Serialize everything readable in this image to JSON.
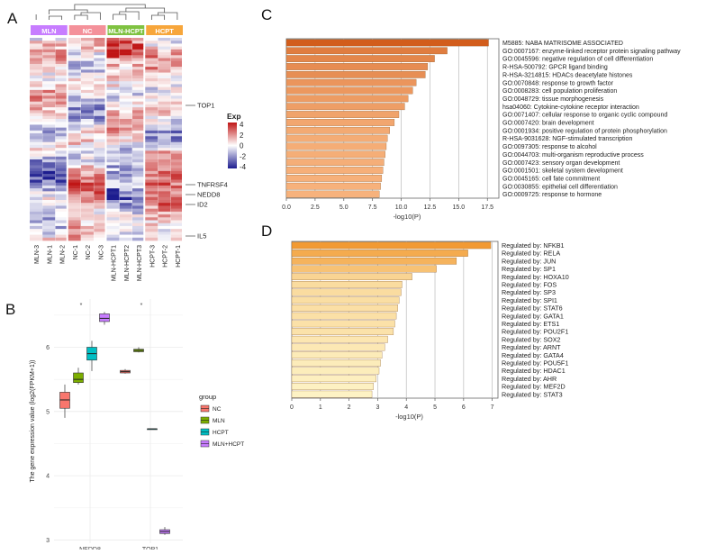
{
  "panel_labels": {
    "a": "A",
    "b": "B",
    "c": "C",
    "d": "D"
  },
  "chart_data": [
    {
      "panel": "A",
      "type": "heatmap",
      "groups": [
        {
          "name": "MLN",
          "color": "#c77dff"
        },
        {
          "name": "NC",
          "color": "#f4919a"
        },
        {
          "name": "MLN-HCPT",
          "color": "#7fc241"
        },
        {
          "name": "HCPT",
          "color": "#f7a63b"
        }
      ],
      "columns": [
        "MLN-3",
        "MLN-1",
        "MLN-2",
        "NC-1",
        "NC-2",
        "NC-3",
        "MLN-HCPT1",
        "MLN-HCPT2",
        "MLN-HCPT3",
        "HCPT-3",
        "HCPT-2",
        "HCPT-1"
      ],
      "gene_labels": [
        "TOP1",
        "TNFRSF4",
        "NEDD8",
        "ID2",
        "IL5"
      ],
      "legend": {
        "title": "Exp",
        "ticks": [
          "4",
          "2",
          "0",
          "-2",
          "-4"
        ],
        "range": [
          -4,
          4
        ],
        "low_color": "#1d1d8f",
        "mid_color": "#ffffff",
        "high_color": "#c01616"
      }
    },
    {
      "panel": "B",
      "type": "boxplot",
      "categories": [
        "NEDD8",
        "TOP1"
      ],
      "ylabel": "The gene expression value (log2(FPKM+1))",
      "ylim": [
        2.95,
        6.75
      ],
      "yticks": [
        3,
        4,
        5,
        6
      ],
      "significance": [
        "*",
        "*"
      ],
      "legend_title": "group",
      "series": [
        {
          "name": "NC",
          "color": "#f8766d",
          "boxes": [
            {
              "min": 4.9,
              "q1": 5.05,
              "median": 5.18,
              "q3": 5.3,
              "max": 5.42
            },
            {
              "min": 5.59,
              "q1": 5.6,
              "median": 5.62,
              "q3": 5.64,
              "max": 5.66
            }
          ]
        },
        {
          "name": "MLN",
          "color": "#7cae00",
          "boxes": [
            {
              "min": 5.42,
              "q1": 5.45,
              "median": 5.5,
              "q3": 5.6,
              "max": 5.68
            },
            {
              "min": 5.92,
              "q1": 5.93,
              "median": 5.95,
              "q3": 5.97,
              "max": 6.0
            }
          ]
        },
        {
          "name": "HCPT",
          "color": "#00bfc4",
          "boxes": [
            {
              "min": 5.63,
              "q1": 5.8,
              "median": 5.9,
              "q3": 6.0,
              "max": 6.1
            },
            {
              "min": 4.73,
              "q1": 4.73,
              "median": 4.73,
              "q3": 4.73,
              "max": 4.73
            }
          ]
        },
        {
          "name": "MLN+HCPT",
          "color": "#c77cff",
          "boxes": [
            {
              "min": 6.35,
              "q1": 6.4,
              "median": 6.45,
              "q3": 6.52,
              "max": 6.55
            },
            {
              "min": 3.08,
              "q1": 3.1,
              "median": 3.13,
              "q3": 3.16,
              "max": 3.2
            }
          ]
        }
      ]
    },
    {
      "panel": "C",
      "type": "bar",
      "orientation": "horizontal",
      "xlabel": "-log10(P)",
      "xlim": [
        0,
        18.5
      ],
      "xticks": [
        "0.0",
        "2.5",
        "5.0",
        "7.5",
        "10.0",
        "12.5",
        "15.0",
        "17.5"
      ],
      "categories": [
        "M5885: NABA MATRISOME ASSOCIATED",
        "GO:0007167: enzyme-linked receptor protein signaling pathway",
        "GO:0045596: negative regulation of cell differentiation",
        "R-HSA-500792: GPCR ligand binding",
        "R-HSA-3214815: HDACs deacetylate histones",
        "GO:0070848: response to growth factor",
        "GO:0008283: cell population proliferation",
        "GO:0048729: tissue morphogenesis",
        "hsa04060: Cytokine-cytokine receptor interaction",
        "GO:0071407: cellular response to organic cyclic compound",
        "GO:0007420: brain development",
        "GO:0001934: positive regulation of protein phosphorylation",
        "R-HSA-9031628: NGF-stimulated transcription",
        "GO:0097305: response to alcohol",
        "GO:0044703: multi-organism reproductive process",
        "GO:0007423: sensory organ development",
        "GO:0001501: skeletal system development",
        "GO:0045165: cell fate commitment",
        "GO:0030855: epithelial cell differentiation",
        "GO:0009725: response to hormone"
      ],
      "values": [
        17.6,
        14.0,
        12.9,
        12.3,
        12.1,
        11.3,
        11.0,
        10.6,
        10.3,
        9.8,
        9.4,
        9.0,
        8.8,
        8.7,
        8.6,
        8.5,
        8.4,
        8.3,
        8.2,
        8.1
      ],
      "color_low": "#f7b27c",
      "color_high": "#d25d1c"
    },
    {
      "panel": "D",
      "type": "bar",
      "orientation": "horizontal",
      "xlabel": "-log10(P)",
      "xlim": [
        0,
        7.2
      ],
      "xticks": [
        "0",
        "1",
        "2",
        "3",
        "4",
        "5",
        "6",
        "7"
      ],
      "categories": [
        "Regulated by: NFKB1",
        "Regulated by: RELA",
        "Regulated by: JUN",
        "Regulated by: SP1",
        "Regulated by: HOXA10",
        "Regulated by: FOS",
        "Regulated by: SP3",
        "Regulated by: SPI1",
        "Regulated by: STAT6",
        "Regulated by: GATA1",
        "Regulated by: ETS1",
        "Regulated by: POU2F1",
        "Regulated by: SOX2",
        "Regulated by: ARNT",
        "Regulated by: GATA4",
        "Regulated by: POU5F1",
        "Regulated by: HDAC1",
        "Regulated by: AHR",
        "Regulated by: MEF2D",
        "Regulated by: STAT3"
      ],
      "values": [
        6.95,
        6.15,
        5.75,
        5.05,
        4.2,
        3.85,
        3.82,
        3.75,
        3.7,
        3.65,
        3.6,
        3.55,
        3.35,
        3.25,
        3.15,
        3.1,
        3.05,
        2.95,
        2.85,
        2.8
      ],
      "color_low": "#fdf2c4",
      "color_high": "#f29a33"
    }
  ]
}
